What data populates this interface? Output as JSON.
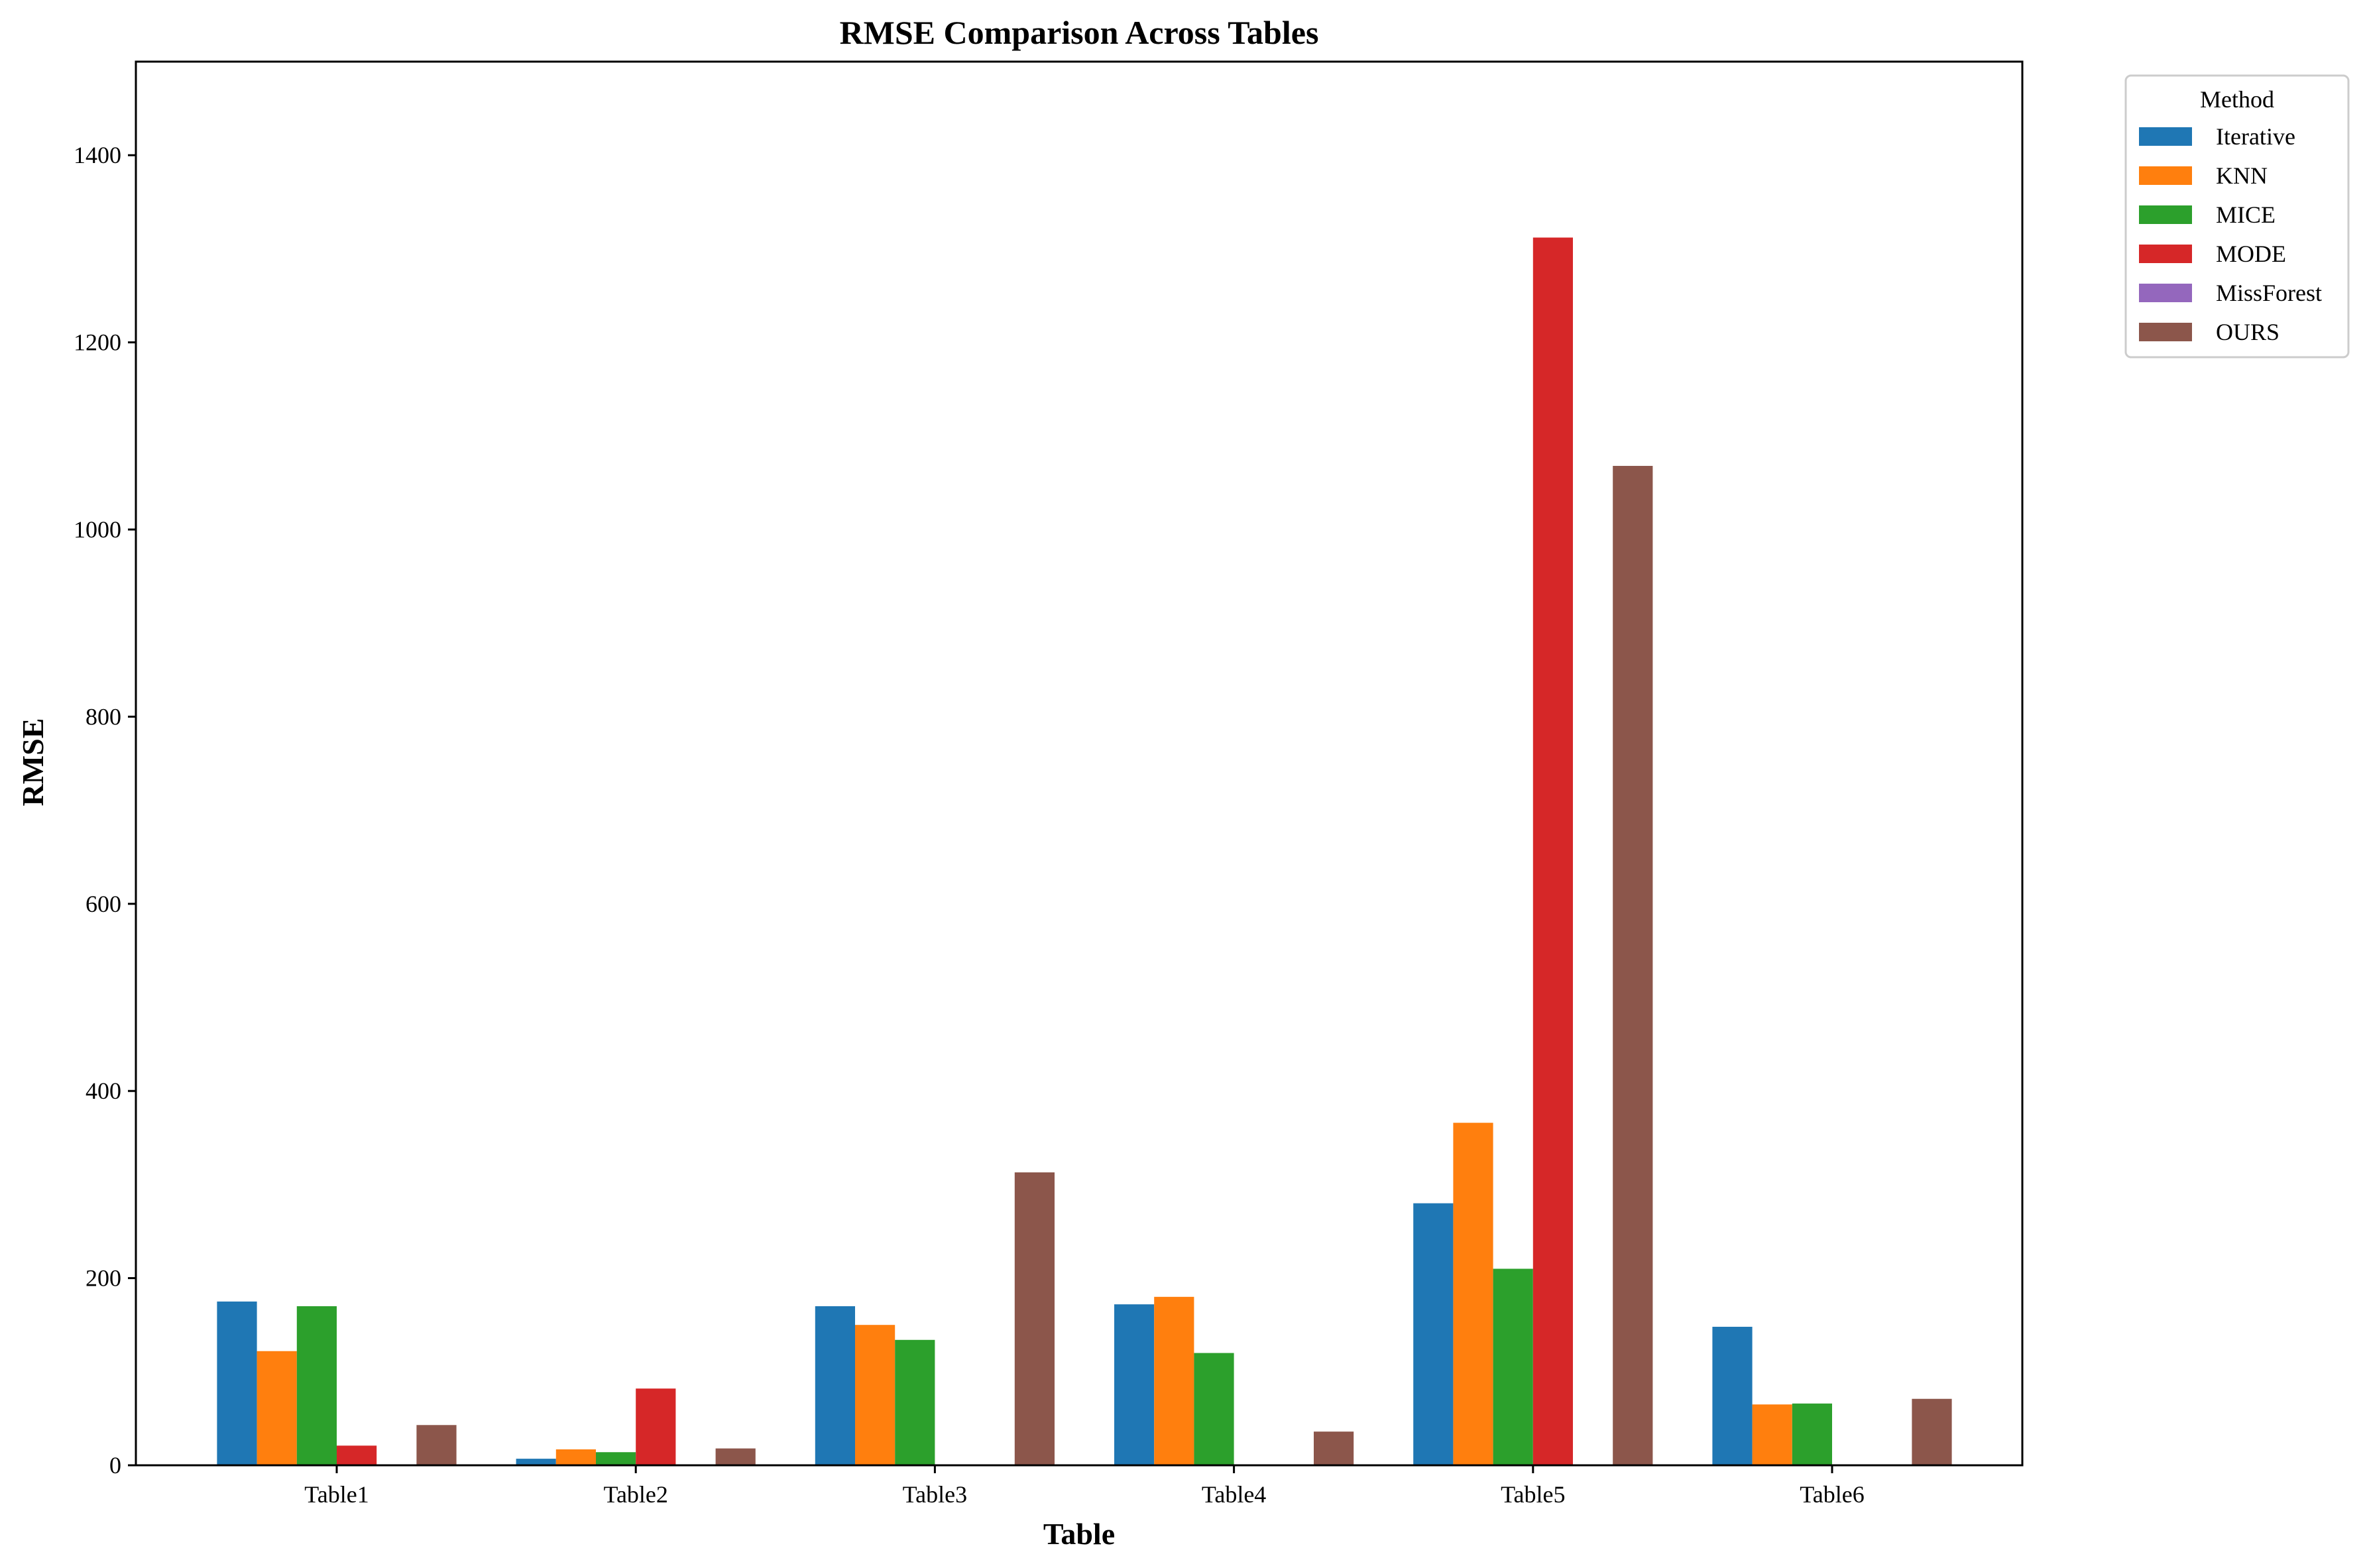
{
  "chart_data": {
    "type": "bar",
    "title": "RMSE Comparison Across Tables",
    "xlabel": "Table",
    "ylabel": "RMSE",
    "categories": [
      "Table1",
      "Table2",
      "Table3",
      "Table4",
      "Table5",
      "Table6"
    ],
    "ylim": [
      0,
      1500
    ],
    "yticks": [
      0,
      200,
      400,
      600,
      800,
      1000,
      1200,
      1400
    ],
    "grid": false,
    "legend": {
      "title": "Method",
      "placement": "outside-top-right"
    },
    "series": [
      {
        "name": "Iterative",
        "color": "#1f77b4",
        "values": [
          175,
          7,
          170,
          172,
          280,
          148
        ]
      },
      {
        "name": "KNN",
        "color": "#ff7f0e",
        "values": [
          122,
          17,
          150,
          180,
          366,
          65
        ]
      },
      {
        "name": "MICE",
        "color": "#2ca02c",
        "values": [
          170,
          14,
          134,
          120,
          210,
          66
        ]
      },
      {
        "name": "MODE",
        "color": "#d62728",
        "values": [
          21,
          82,
          0,
          0,
          1312,
          0
        ]
      },
      {
        "name": "MissForest",
        "color": "#9467bd",
        "values": [
          0,
          0,
          0,
          0,
          0,
          0
        ]
      },
      {
        "name": "OURS",
        "color": "#8c564b",
        "values": [
          43,
          18,
          313,
          36,
          1068,
          71
        ]
      }
    ]
  }
}
